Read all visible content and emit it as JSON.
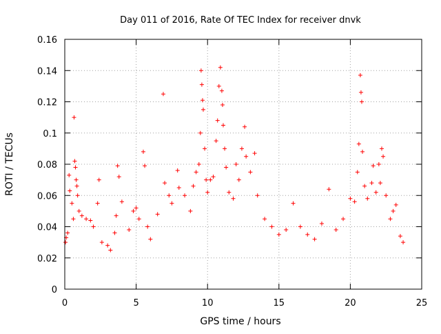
{
  "chart_data": {
    "type": "scatter",
    "title": "Day 011 of 2016, Rate Of TEC Index for receiver dnvk",
    "xlabel": "GPS time / hours",
    "ylabel": "ROTI / TECUs",
    "xlim": [
      0,
      25
    ],
    "ylim": [
      0,
      0.16
    ],
    "x_ticks": [
      0,
      5,
      10,
      15,
      20,
      25
    ],
    "y_ticks": [
      0,
      0.02,
      0.04,
      0.06,
      0.08,
      0.1,
      0.12,
      0.14,
      0.16
    ],
    "x_tick_labels": [
      "0",
      "5",
      "10",
      "15",
      "20",
      "25"
    ],
    "y_tick_labels": [
      "0",
      "0.02",
      "0.04",
      "0.06",
      "0.08",
      "0.1",
      "0.12",
      "0.14",
      "0.16"
    ],
    "grid": true,
    "marker": "+",
    "series_color": "#ff0000",
    "series": [
      {
        "points": [
          [
            0.05,
            0.03
          ],
          [
            0.1,
            0.033
          ],
          [
            0.2,
            0.036
          ],
          [
            0.3,
            0.073
          ],
          [
            0.35,
            0.063
          ],
          [
            0.5,
            0.055
          ],
          [
            0.6,
            0.045
          ],
          [
            0.65,
            0.11
          ],
          [
            0.7,
            0.082
          ],
          [
            0.75,
            0.078
          ],
          [
            0.8,
            0.07
          ],
          [
            0.85,
            0.066
          ],
          [
            0.9,
            0.06
          ],
          [
            1.0,
            0.05
          ],
          [
            1.2,
            0.047
          ],
          [
            1.5,
            0.045
          ],
          [
            1.8,
            0.044
          ],
          [
            2.0,
            0.04
          ],
          [
            2.3,
            0.055
          ],
          [
            2.4,
            0.07
          ],
          [
            2.6,
            0.03
          ],
          [
            3.0,
            0.028
          ],
          [
            3.2,
            0.025
          ],
          [
            3.5,
            0.036
          ],
          [
            3.6,
            0.047
          ],
          [
            3.7,
            0.079
          ],
          [
            3.8,
            0.072
          ],
          [
            4.0,
            0.056
          ],
          [
            4.5,
            0.038
          ],
          [
            4.8,
            0.05
          ],
          [
            5.0,
            0.052
          ],
          [
            5.2,
            0.045
          ],
          [
            5.5,
            0.088
          ],
          [
            5.6,
            0.079
          ],
          [
            5.8,
            0.04
          ],
          [
            6.0,
            0.032
          ],
          [
            6.5,
            0.048
          ],
          [
            6.9,
            0.125
          ],
          [
            7.0,
            0.068
          ],
          [
            7.3,
            0.06
          ],
          [
            7.5,
            0.055
          ],
          [
            7.9,
            0.076
          ],
          [
            8.0,
            0.065
          ],
          [
            8.4,
            0.06
          ],
          [
            8.8,
            0.05
          ],
          [
            9.0,
            0.066
          ],
          [
            9.2,
            0.075
          ],
          [
            9.4,
            0.08
          ],
          [
            9.5,
            0.1
          ],
          [
            9.55,
            0.14
          ],
          [
            9.6,
            0.131
          ],
          [
            9.65,
            0.121
          ],
          [
            9.7,
            0.115
          ],
          [
            9.8,
            0.09
          ],
          [
            9.9,
            0.07
          ],
          [
            10.0,
            0.062
          ],
          [
            10.2,
            0.07
          ],
          [
            10.4,
            0.072
          ],
          [
            10.6,
            0.095
          ],
          [
            10.7,
            0.108
          ],
          [
            10.8,
            0.13
          ],
          [
            10.9,
            0.142
          ],
          [
            11.0,
            0.127
          ],
          [
            11.05,
            0.118
          ],
          [
            11.1,
            0.105
          ],
          [
            11.2,
            0.09
          ],
          [
            11.3,
            0.078
          ],
          [
            11.5,
            0.062
          ],
          [
            11.8,
            0.058
          ],
          [
            12.0,
            0.08
          ],
          [
            12.2,
            0.07
          ],
          [
            12.4,
            0.09
          ],
          [
            12.6,
            0.104
          ],
          [
            12.7,
            0.085
          ],
          [
            13.0,
            0.075
          ],
          [
            13.3,
            0.087
          ],
          [
            13.5,
            0.06
          ],
          [
            14.0,
            0.045
          ],
          [
            14.5,
            0.04
          ],
          [
            15.0,
            0.035
          ],
          [
            15.5,
            0.038
          ],
          [
            16.0,
            0.055
          ],
          [
            16.5,
            0.04
          ],
          [
            17.0,
            0.035
          ],
          [
            17.5,
            0.032
          ],
          [
            18.0,
            0.042
          ],
          [
            18.5,
            0.064
          ],
          [
            19.0,
            0.038
          ],
          [
            19.5,
            0.045
          ],
          [
            20.0,
            0.058
          ],
          [
            20.3,
            0.056
          ],
          [
            20.5,
            0.075
          ],
          [
            20.6,
            0.093
          ],
          [
            20.7,
            0.137
          ],
          [
            20.75,
            0.126
          ],
          [
            20.8,
            0.12
          ],
          [
            20.85,
            0.088
          ],
          [
            21.0,
            0.066
          ],
          [
            21.2,
            0.058
          ],
          [
            21.5,
            0.068
          ],
          [
            21.6,
            0.079
          ],
          [
            21.8,
            0.062
          ],
          [
            22.0,
            0.08
          ],
          [
            22.1,
            0.068
          ],
          [
            22.2,
            0.09
          ],
          [
            22.3,
            0.085
          ],
          [
            22.5,
            0.06
          ],
          [
            22.8,
            0.045
          ],
          [
            23.0,
            0.05
          ],
          [
            23.2,
            0.054
          ],
          [
            23.5,
            0.034
          ],
          [
            23.7,
            0.03
          ]
        ]
      }
    ]
  }
}
